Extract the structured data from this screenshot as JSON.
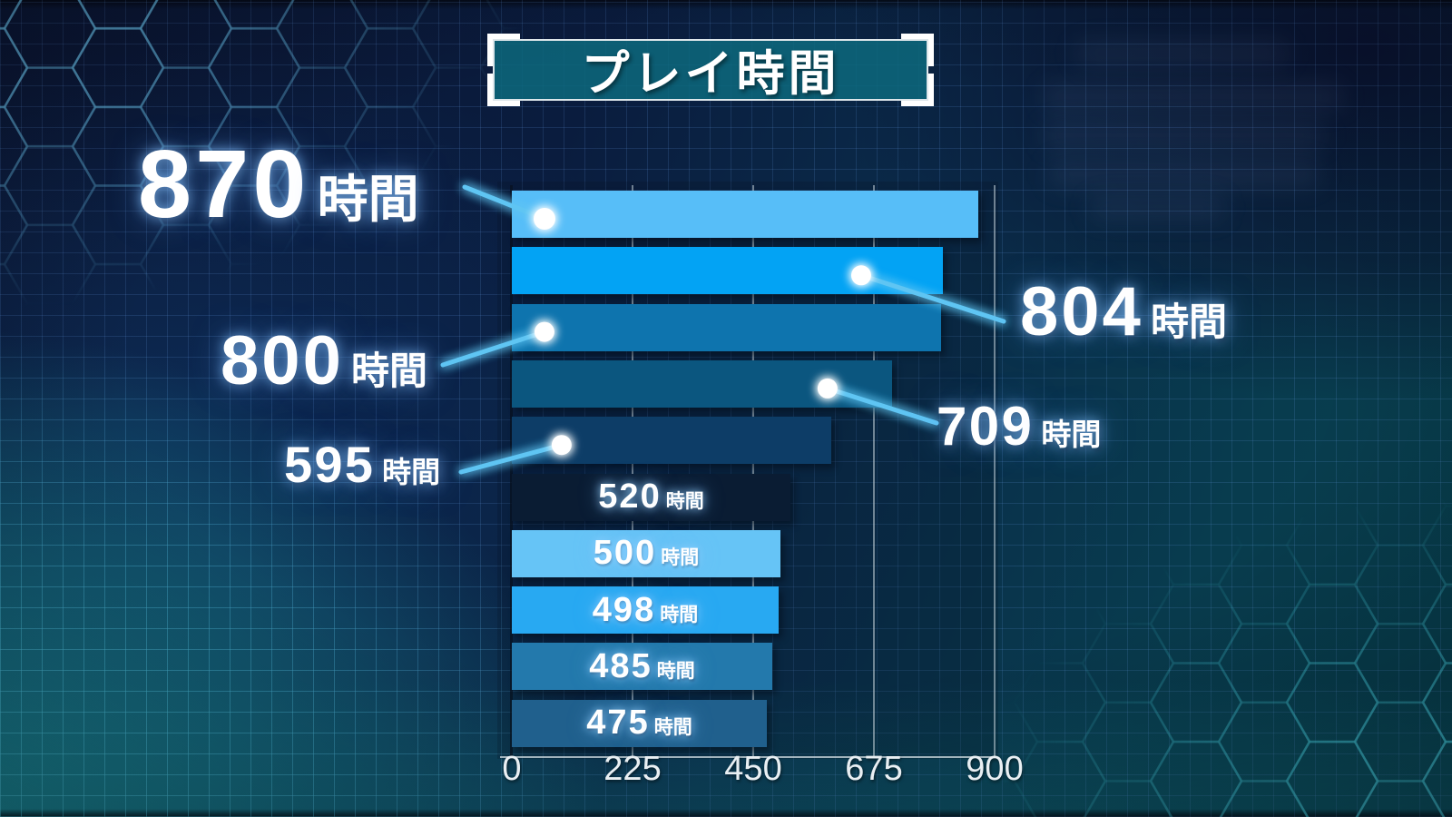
{
  "chart_data": {
    "type": "bar",
    "orientation": "horizontal",
    "title": "プレイ時間",
    "unit_suffix": "時間",
    "values": [
      870,
      804,
      800,
      709,
      595,
      520,
      500,
      498,
      485,
      475
    ],
    "value_labels": [
      "870時間",
      "804時間",
      "800時間",
      "709時間",
      "595時間",
      "520時間",
      "500時間",
      "498時間",
      "485時間",
      "475時間"
    ],
    "bar_colors": [
      "#57BEF8",
      "#03A3F4",
      "#0E74AE",
      "#0B567F",
      "#0D3D67",
      "#0A1C33",
      "#66C4F6",
      "#28A9F2",
      "#2379AC",
      "#20608D"
    ],
    "x_ticks": [
      0,
      225,
      450,
      675,
      900
    ],
    "x_tick_labels": [
      "0",
      "225",
      "450",
      "675",
      "900"
    ],
    "xlim": [
      0,
      900
    ],
    "grid": true,
    "legend": false,
    "label_placement": [
      "callout",
      "callout",
      "callout",
      "callout",
      "callout",
      "inside",
      "inside",
      "inside",
      "inside",
      "inside"
    ]
  },
  "colors": {
    "callout_line": "#5EC5F3",
    "callout_dot": "#FFFFFF",
    "label_text": "#FFFFFF",
    "axis_text": "#E9EFF3",
    "gridline": "#C5D4DA",
    "title_box_fill": "#0D687C",
    "title_box_border": "#DDE6EA",
    "bracket": "#FFFFFF"
  }
}
